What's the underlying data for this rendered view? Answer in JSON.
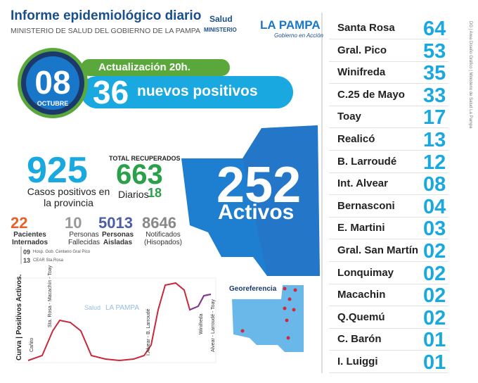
{
  "header": {
    "title": "Informe epidemiológico diario",
    "subtitle": "MINISTERIO DE SALUD DEL GOBIERNO DE LA PAMPA"
  },
  "logo": {
    "salud": "Salud",
    "ministerio": "MINISTERIO",
    "name": "LA PAMPA",
    "tagline": "Gobierno en Acción"
  },
  "date": {
    "day": "08",
    "month": "OCTUBRE"
  },
  "update": "Actualización 20h.",
  "new_positives": {
    "value": 36,
    "label": "nuevos positivos"
  },
  "total_cases": {
    "value": 925,
    "label": "Casos positivos en la provincia"
  },
  "recovered": {
    "label": "TOTAL RECUPERADOS",
    "value": 663,
    "daily_label": "Diarios",
    "daily": 18
  },
  "stats": [
    {
      "value": 22,
      "label": "Pacientes Internados"
    },
    {
      "value": 10,
      "label": "Personas Fallecidas"
    },
    {
      "value": 5013,
      "label": "Personas Aisladas"
    },
    {
      "value": 8646,
      "label": "Notificados (Hisopados)"
    }
  ],
  "hospitals": [
    {
      "count": "09",
      "name": "Hosp. Gob. Centeno Gral Pico"
    },
    {
      "count": "13",
      "name": "CEAR Sta.Rosa"
    }
  ],
  "active": {
    "value": 252,
    "label": "Activos"
  },
  "curve": {
    "title": "Curva | Positivos Activos.",
    "notes": [
      "Cañito",
      "Sta. Rosa - Macachín - Toay",
      "I.Alvear - B. Larroudé",
      "Winifreda",
      "Alvear - Larroudé - Toay"
    ]
  },
  "georef": "Georeferencia",
  "localities": [
    {
      "name": "Santa Rosa",
      "count": "64"
    },
    {
      "name": "Gral. Pico",
      "count": "53"
    },
    {
      "name": "Winifreda",
      "count": "35"
    },
    {
      "name": "C.25 de Mayo",
      "count": "33"
    },
    {
      "name": "Toay",
      "count": "17"
    },
    {
      "name": "Realicó",
      "count": "13"
    },
    {
      "name": "B. Larroudé",
      "count": "12"
    },
    {
      "name": "Int. Alvear",
      "count": "08"
    },
    {
      "name": "Bernasconi",
      "count": "04"
    },
    {
      "name": "E. Martini",
      "count": "03"
    },
    {
      "name": "Gral. San Martín",
      "count": "02"
    },
    {
      "name": "Lonquimay",
      "count": "02"
    },
    {
      "name": "Macachin",
      "count": "02"
    },
    {
      "name": "Q.Quemú",
      "count": "02"
    },
    {
      "name": "C. Barón",
      "count": "01"
    },
    {
      "name": "I. Luiggi",
      "count": "01"
    }
  ],
  "credit": "DG | Area Diseño Gráfico | Ministerio de Salud La Pampa"
}
